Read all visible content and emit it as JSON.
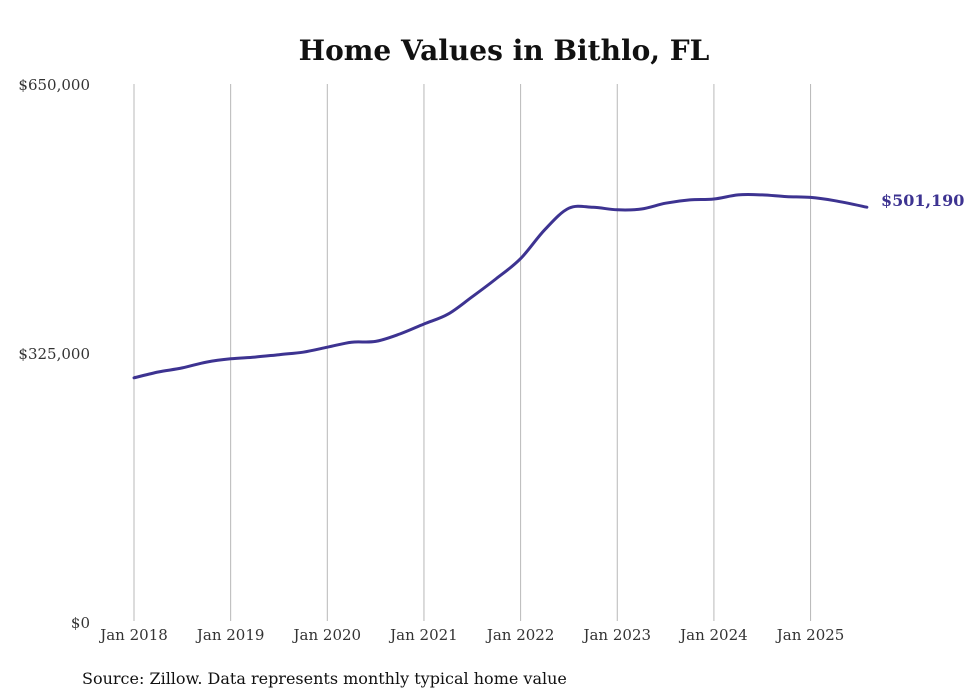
{
  "chart_data": {
    "type": "line",
    "title": "Home Values in Bithlo, FL",
    "xlabel": "",
    "ylabel": "",
    "y_ticks": [
      "$650,000",
      "$325,000",
      "$0"
    ],
    "y_tick_values": [
      650000,
      325000,
      0
    ],
    "ylim": [
      0,
      650000
    ],
    "x_ticks": [
      "Jan 2018",
      "Jan 2019",
      "Jan 2020",
      "Jan 2021",
      "Jan 2022",
      "Jan 2023",
      "Jan 2024",
      "Jan 2025"
    ],
    "x_tick_dates": [
      "2018-01",
      "2019-01",
      "2020-01",
      "2021-01",
      "2022-01",
      "2023-01",
      "2024-01",
      "2025-01"
    ],
    "xlim": [
      "2018-01",
      "2025-09"
    ],
    "grid": "vertical",
    "series": [
      {
        "color": "#3d3391",
        "end_label": "$501,190",
        "x": [
          "2018-01",
          "2018-04",
          "2018-07",
          "2018-10",
          "2019-01",
          "2019-04",
          "2019-07",
          "2019-10",
          "2020-01",
          "2020-04",
          "2020-07",
          "2020-10",
          "2021-01",
          "2021-04",
          "2021-07",
          "2021-10",
          "2022-01",
          "2022-04",
          "2022-07",
          "2022-10",
          "2023-01",
          "2023-04",
          "2023-07",
          "2023-10",
          "2024-01",
          "2024-04",
          "2024-07",
          "2024-10",
          "2025-01",
          "2025-04",
          "2025-08"
        ],
        "y": [
          295000,
          302000,
          307000,
          314000,
          318000,
          320000,
          323000,
          326000,
          332000,
          338000,
          339000,
          348000,
          360000,
          372000,
          393000,
          415000,
          439000,
          474000,
          500000,
          501000,
          498000,
          499000,
          506000,
          510000,
          511000,
          516000,
          516000,
          514000,
          513000,
          509000,
          501190
        ]
      }
    ]
  },
  "footer": {
    "source": "Source: Zillow. Data represents monthly typical home value"
  }
}
